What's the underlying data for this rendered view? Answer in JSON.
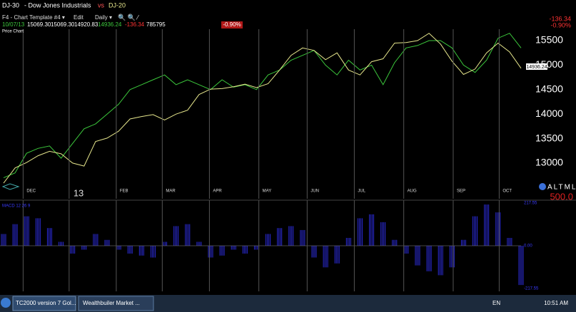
{
  "header": {
    "title": "- Dow Jones Industrials",
    "vs": "vs"
  },
  "toolbar": {
    "template": "F4 - Chart Template #4 ▾",
    "edit": "Edit",
    "period": "Daily ▾"
  },
  "quote": {
    "date": "10/07/13",
    "open": "15069.30",
    "high": "15069.30",
    "low": "14920.83",
    "close": "14936.24",
    "change": "-136.34",
    "volume": "785795",
    "change_pct": "-0.90%"
  },
  "corner": {
    "change": "-136.34",
    "change_pct": "-0.90%"
  },
  "price_tag": "14936.24",
  "altml": {
    "label": "ALTML",
    "value": "500.0"
  },
  "chart_data": [
    {
      "type": "line",
      "title": "Price Chart",
      "series": [
        {
          "name": "DJ-30",
          "color": "#e6e68c",
          "values": [
            12590,
            12900,
            13010,
            13150,
            13240,
            13190,
            13000,
            12940,
            13440,
            13510,
            13650,
            13900,
            13950,
            13990,
            13880,
            14000,
            14080,
            14400,
            14510,
            14520,
            14560,
            14610,
            14540,
            14620,
            14900,
            15200,
            15350,
            15300,
            15110,
            15250,
            14900,
            14800,
            15070,
            15130,
            15450,
            15460,
            15500,
            15650,
            15430,
            15080,
            14810,
            14920,
            15250,
            15450,
            15270,
            14936
          ]
        },
        {
          "name": "DJ-20",
          "color": "#3cc83c",
          "values": [
            12700,
            12800,
            13200,
            13300,
            13350,
            13100,
            13400,
            13700,
            13800,
            14000,
            14200,
            14500,
            14600,
            14700,
            14800,
            14600,
            14700,
            14600,
            14500,
            14700,
            14550,
            14600,
            14500,
            14800,
            14900,
            15100,
            15200,
            15300,
            15000,
            14800,
            15100,
            14900,
            15000,
            14600,
            15050,
            15350,
            15400,
            15500,
            15500,
            15350,
            15000,
            14850,
            15100,
            15550,
            15650,
            15350
          ]
        }
      ],
      "xticks": [
        {
          "value": 1.7,
          "label": "DEC"
        },
        {
          "value": 5.7,
          "label": "13"
        },
        {
          "value": 9.8,
          "label": "FEB"
        },
        {
          "value": 13.8,
          "label": "MAR"
        },
        {
          "value": 17.9,
          "label": "APR"
        },
        {
          "value": 22.2,
          "label": "MAY"
        },
        {
          "value": 26.4,
          "label": "JUN"
        },
        {
          "value": 30.5,
          "label": "JUL"
        },
        {
          "value": 34.8,
          "label": "AUG"
        },
        {
          "value": 39.1,
          "label": "SEP"
        },
        {
          "value": 43.1,
          "label": "OCT"
        }
      ],
      "xlim": [
        0,
        45
      ],
      "ylim": [
        12330,
        15675
      ],
      "yticks": [
        13000,
        13500,
        14000,
        14500,
        15000,
        15500
      ],
      "grid": true
    },
    {
      "type": "bar",
      "title": "MACD 12 26 9",
      "color": "#2b2bd6",
      "values": [
        60,
        110,
        150,
        140,
        90,
        20,
        -40,
        -20,
        60,
        30,
        -20,
        -40,
        -50,
        -60,
        20,
        100,
        110,
        20,
        -60,
        -50,
        -20,
        -40,
        -20,
        60,
        90,
        100,
        80,
        -60,
        -110,
        -90,
        40,
        140,
        160,
        120,
        30,
        -40,
        -100,
        -130,
        -150,
        -110,
        30,
        150,
        210,
        170,
        40,
        -200
      ],
      "xlim": [
        0,
        45
      ],
      "ylim": [
        -217.55,
        217.55
      ],
      "yticks": [
        217.55,
        {
          "value": 0,
          "label": "0.00"
        },
        -217.55
      ]
    }
  ],
  "taskbar": {
    "app1": "TC2000 version 7 Gol...",
    "app2": "Wealthbuiler Market ...",
    "lang": "EN",
    "time": "10:51 AM"
  }
}
